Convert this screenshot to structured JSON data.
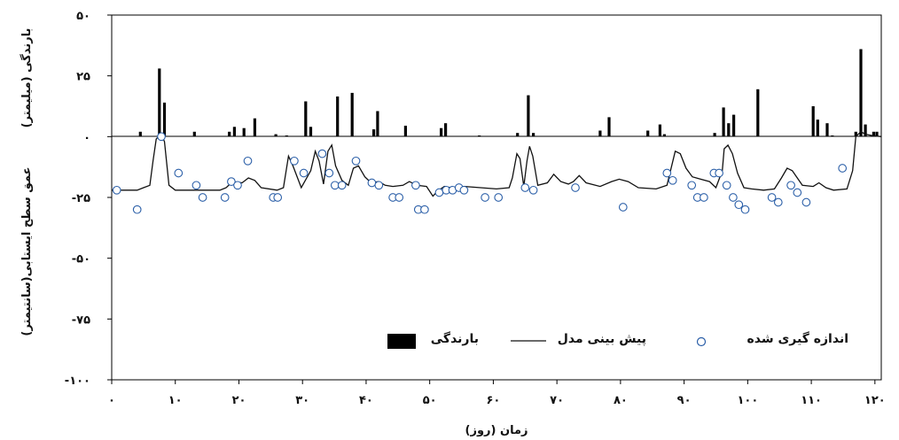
{
  "chart_data": {
    "type": "bar+line+scatter",
    "xlabel": "زمان (روز)",
    "ylabel_top": "بارندگی (میلیمتر)",
    "ylabel_bottom": "عمق سطح ایستابی(سانتیمتر)",
    "x_ticks": [
      {
        "value": 0,
        "label": "۰"
      },
      {
        "value": 10,
        "label": "۱۰"
      },
      {
        "value": 20,
        "label": "۲۰"
      },
      {
        "value": 30,
        "label": "۳۰"
      },
      {
        "value": 40,
        "label": "۴۰"
      },
      {
        "value": 50,
        "label": "۵۰"
      },
      {
        "value": 60,
        "label": "۶۰"
      },
      {
        "value": 70,
        "label": "۷۰"
      },
      {
        "value": 80,
        "label": "۸۰"
      },
      {
        "value": 90,
        "label": "۹۰"
      },
      {
        "value": 100,
        "label": "۱۰۰"
      },
      {
        "value": 110,
        "label": "۱۱۰"
      },
      {
        "value": 120,
        "label": "۱۲۰"
      }
    ],
    "y_ticks": [
      {
        "value": 50,
        "label": "۵۰"
      },
      {
        "value": 25,
        "label": "۲۵"
      },
      {
        "value": 0,
        "label": "۰"
      },
      {
        "value": -25,
        "label": "-۲۵"
      },
      {
        "value": -50,
        "label": "-۵۰"
      },
      {
        "value": -75,
        "label": "-۷۵"
      },
      {
        "value": -100,
        "label": "-۱۰۰"
      }
    ],
    "xlim": [
      0,
      121
    ],
    "ylim": [
      -100,
      50
    ],
    "legend": {
      "placement": "bottom-right",
      "items": [
        {
          "label": "اندازه گیری شده",
          "marker": "circle"
        },
        {
          "label": "پیش بینی مدل",
          "marker": "line"
        },
        {
          "label": "بارندگی",
          "marker": "bar"
        }
      ]
    },
    "rainfall": [
      {
        "x": 4.5,
        "y": 2
      },
      {
        "x": 7.5,
        "y": 28
      },
      {
        "x": 8.3,
        "y": 14
      },
      {
        "x": 13,
        "y": 2
      },
      {
        "x": 18.5,
        "y": 2
      },
      {
        "x": 19.3,
        "y": 4
      },
      {
        "x": 20.8,
        "y": 3.5
      },
      {
        "x": 22.5,
        "y": 7.5
      },
      {
        "x": 25.8,
        "y": 1
      },
      {
        "x": 27.5,
        "y": 0.5
      },
      {
        "x": 30.5,
        "y": 14.5
      },
      {
        "x": 31.3,
        "y": 4
      },
      {
        "x": 35.5,
        "y": 16.5
      },
      {
        "x": 37.8,
        "y": 18
      },
      {
        "x": 41.2,
        "y": 3
      },
      {
        "x": 41.8,
        "y": 10.5
      },
      {
        "x": 46.2,
        "y": 4.5
      },
      {
        "x": 51.8,
        "y": 3.5
      },
      {
        "x": 52.5,
        "y": 5.5
      },
      {
        "x": 57.8,
        "y": 0.5
      },
      {
        "x": 63.8,
        "y": 1.5
      },
      {
        "x": 65.5,
        "y": 17
      },
      {
        "x": 66.3,
        "y": 1.5
      },
      {
        "x": 76.8,
        "y": 2.5
      },
      {
        "x": 78.2,
        "y": 8
      },
      {
        "x": 84.3,
        "y": 2.5
      },
      {
        "x": 86.2,
        "y": 5
      },
      {
        "x": 86.9,
        "y": 1
      },
      {
        "x": 94.8,
        "y": 1.5
      },
      {
        "x": 96.2,
        "y": 12
      },
      {
        "x": 97,
        "y": 5.5
      },
      {
        "x": 97.8,
        "y": 9
      },
      {
        "x": 101.6,
        "y": 19.5
      },
      {
        "x": 110.3,
        "y": 12.5
      },
      {
        "x": 111,
        "y": 7
      },
      {
        "x": 112.5,
        "y": 5.5
      },
      {
        "x": 113.3,
        "y": 0.5
      },
      {
        "x": 117,
        "y": 2
      },
      {
        "x": 117.8,
        "y": 36
      },
      {
        "x": 118.5,
        "y": 5
      },
      {
        "x": 119.8,
        "y": 2
      },
      {
        "x": 120.3,
        "y": 2
      }
    ],
    "model": [
      [
        0,
        -22
      ],
      [
        4,
        -22
      ],
      [
        5,
        -21
      ],
      [
        6,
        -20
      ],
      [
        6.5,
        -10
      ],
      [
        7,
        -1
      ],
      [
        7.7,
        1
      ],
      [
        8.3,
        -2
      ],
      [
        9,
        -20
      ],
      [
        10,
        -22
      ],
      [
        17,
        -22
      ],
      [
        18,
        -21
      ],
      [
        19,
        -18.5
      ],
      [
        20.5,
        -19
      ],
      [
        21.5,
        -17
      ],
      [
        22.5,
        -18
      ],
      [
        23.5,
        -21
      ],
      [
        26,
        -22
      ],
      [
        27,
        -21
      ],
      [
        27.8,
        -8
      ],
      [
        28.5,
        -12
      ],
      [
        29.8,
        -21
      ],
      [
        31.3,
        -14
      ],
      [
        32,
        -6
      ],
      [
        32.6,
        -10
      ],
      [
        33.3,
        -19.5
      ],
      [
        34,
        -6
      ],
      [
        34.6,
        -3.5
      ],
      [
        35.2,
        -12
      ],
      [
        36.2,
        -18
      ],
      [
        37.2,
        -20
      ],
      [
        38,
        -13
      ],
      [
        38.8,
        -12
      ],
      [
        39.8,
        -16.5
      ],
      [
        40.8,
        -19
      ],
      [
        42,
        -18.5
      ],
      [
        43,
        -20
      ],
      [
        44.2,
        -20.5
      ],
      [
        45.8,
        -20
      ],
      [
        46.8,
        -18.5
      ],
      [
        48,
        -20
      ],
      [
        49.5,
        -20.5
      ],
      [
        50.5,
        -24.5
      ],
      [
        51.2,
        -22.5
      ],
      [
        52.3,
        -20.5
      ],
      [
        53.3,
        -21
      ],
      [
        55.5,
        -20.5
      ],
      [
        58,
        -21
      ],
      [
        60.5,
        -21.5
      ],
      [
        62.5,
        -21
      ],
      [
        63,
        -17
      ],
      [
        63.7,
        -7
      ],
      [
        64.2,
        -9
      ],
      [
        64.8,
        -20.5
      ],
      [
        65.3,
        -10
      ],
      [
        65.7,
        -4
      ],
      [
        66.2,
        -8
      ],
      [
        67,
        -20
      ],
      [
        68.5,
        -19
      ],
      [
        69.5,
        -15.5
      ],
      [
        70.6,
        -18.5
      ],
      [
        71.8,
        -19.5
      ],
      [
        72.6,
        -18.5
      ],
      [
        73.5,
        -16
      ],
      [
        74.6,
        -19
      ],
      [
        76.8,
        -20.5
      ],
      [
        78.6,
        -18.5
      ],
      [
        79.8,
        -17.5
      ],
      [
        81.2,
        -18.5
      ],
      [
        82.8,
        -21
      ],
      [
        85.6,
        -21.5
      ],
      [
        87.3,
        -20
      ],
      [
        88.6,
        -6
      ],
      [
        89.4,
        -7
      ],
      [
        90.3,
        -13
      ],
      [
        91.3,
        -16.5
      ],
      [
        92.6,
        -17.5
      ],
      [
        94,
        -18.5
      ],
      [
        95,
        -21
      ],
      [
        96,
        -14
      ],
      [
        96.3,
        -5
      ],
      [
        96.9,
        -3.5
      ],
      [
        97.6,
        -7
      ],
      [
        98.4,
        -15
      ],
      [
        99.4,
        -21
      ],
      [
        100.6,
        -21.5
      ],
      [
        102.5,
        -22
      ],
      [
        104.2,
        -21.5
      ],
      [
        105.3,
        -17
      ],
      [
        106.2,
        -13
      ],
      [
        107,
        -14
      ],
      [
        108.6,
        -20
      ],
      [
        110.3,
        -20.5
      ],
      [
        111.2,
        -19
      ],
      [
        112.3,
        -21
      ],
      [
        113.5,
        -22
      ],
      [
        115.6,
        -21.5
      ],
      [
        116.5,
        -14
      ],
      [
        117,
        0
      ],
      [
        117.8,
        2
      ],
      [
        118.5,
        1
      ],
      [
        119.5,
        0.5
      ],
      [
        121,
        0
      ]
    ],
    "measured": [
      [
        0.8,
        -22
      ],
      [
        4,
        -30
      ],
      [
        7.8,
        0
      ],
      [
        10.5,
        -15
      ],
      [
        13.3,
        -20
      ],
      [
        14.3,
        -25
      ],
      [
        17.8,
        -25
      ],
      [
        18.8,
        -18.5
      ],
      [
        19.8,
        -20
      ],
      [
        21.4,
        -10
      ],
      [
        25.4,
        -25
      ],
      [
        26.1,
        -25
      ],
      [
        28.7,
        -10
      ],
      [
        30.2,
        -15
      ],
      [
        33.1,
        -7
      ],
      [
        34.2,
        -15
      ],
      [
        35.1,
        -20
      ],
      [
        36.2,
        -20
      ],
      [
        38.4,
        -10
      ],
      [
        40.9,
        -19
      ],
      [
        42,
        -20
      ],
      [
        44.2,
        -25
      ],
      [
        45.2,
        -25
      ],
      [
        47.8,
        -20
      ],
      [
        48.2,
        -30
      ],
      [
        49.2,
        -30
      ],
      [
        51.5,
        -23
      ],
      [
        52.6,
        -22
      ],
      [
        53.6,
        -22
      ],
      [
        54.6,
        -21
      ],
      [
        55.4,
        -22
      ],
      [
        58.7,
        -25
      ],
      [
        60.8,
        -25
      ],
      [
        65,
        -21
      ],
      [
        66.3,
        -22
      ],
      [
        72.9,
        -21
      ],
      [
        80.4,
        -29
      ],
      [
        87.3,
        -15
      ],
      [
        88.2,
        -18
      ],
      [
        91.2,
        -20
      ],
      [
        92.1,
        -25
      ],
      [
        93.1,
        -25
      ],
      [
        94.7,
        -15
      ],
      [
        95.5,
        -15
      ],
      [
        96.7,
        -20
      ],
      [
        97.7,
        -25
      ],
      [
        98.6,
        -28
      ],
      [
        99.6,
        -30
      ],
      [
        103.8,
        -25
      ],
      [
        104.8,
        -27
      ],
      [
        106.8,
        -20
      ],
      [
        107.8,
        -23
      ],
      [
        109.2,
        -27
      ],
      [
        114.9,
        -13
      ]
    ]
  },
  "colors": {
    "bar": "#000000",
    "line": "#111111",
    "marker_stroke": "#2b5fa8",
    "marker_fill": "#ffffff"
  }
}
